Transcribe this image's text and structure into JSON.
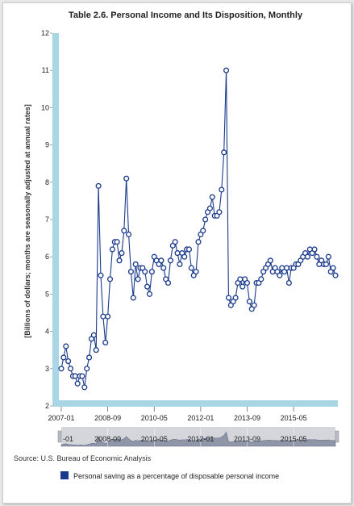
{
  "chart_data": {
    "type": "line",
    "title": "Table 2.6. Personal Income and Its Disposition, Monthly",
    "ylabel": "[Billions of dollars; months are seasonally adjusted at annual rates]",
    "xlabel": "",
    "ylim": [
      2,
      12
    ],
    "yticks": [
      2,
      3,
      4,
      5,
      6,
      7,
      8,
      9,
      10,
      11,
      12
    ],
    "xticks": [
      "2007-01",
      "2008-09",
      "2010-05",
      "2012-01",
      "2013-09",
      "2015-05"
    ],
    "navigator_ticks": [
      "2008-09",
      "2010-05",
      "2012-01",
      "2013-09",
      "2015-05"
    ],
    "navigator_partial_tick": "-01",
    "start": "2007-01",
    "series": [
      {
        "name": "Personal saving as a percentage of disposable personal income",
        "color": "#1a3a8c",
        "values": [
          3.0,
          3.3,
          3.6,
          3.2,
          3.0,
          2.8,
          2.8,
          2.6,
          2.8,
          2.8,
          2.5,
          3.0,
          3.3,
          3.8,
          3.9,
          3.5,
          7.9,
          5.5,
          4.4,
          3.7,
          4.4,
          5.4,
          6.2,
          6.4,
          6.4,
          5.9,
          6.1,
          6.7,
          8.1,
          6.6,
          5.6,
          4.9,
          5.8,
          5.4,
          5.7,
          5.7,
          5.6,
          5.2,
          5.0,
          5.6,
          6.0,
          5.9,
          5.8,
          5.9,
          5.7,
          5.4,
          5.3,
          5.9,
          6.3,
          6.4,
          6.1,
          5.8,
          6.1,
          6.0,
          6.2,
          6.2,
          5.7,
          5.5,
          5.6,
          6.4,
          6.6,
          6.7,
          7.0,
          7.2,
          7.3,
          7.6,
          7.1,
          7.1,
          7.2,
          7.8,
          8.8,
          11.0,
          4.9,
          4.7,
          4.8,
          4.9,
          5.3,
          5.4,
          5.2,
          5.4,
          5.3,
          4.8,
          4.6,
          4.7,
          5.3,
          5.3,
          5.4,
          5.6,
          5.7,
          5.8,
          5.9,
          5.6,
          5.7,
          5.6,
          5.5,
          5.7,
          5.6,
          5.7,
          5.3,
          5.7,
          5.7,
          5.8,
          5.8,
          5.9,
          6.0,
          6.1,
          6.0,
          6.2,
          6.1,
          6.2,
          6.0,
          5.8,
          5.9,
          5.8,
          5.8,
          6.0,
          5.6,
          5.7,
          5.5
        ]
      }
    ],
    "legend_position": "bottom-left",
    "grid": false
  },
  "source": "Source: U.S. Bureau of Economic Analysis",
  "colors": {
    "line": "#1a3a8c",
    "axis_band": "#a8d6e4",
    "navigator_fill": "#8f96a8",
    "navigator_bg": "#d4d6dc",
    "legend_swatch": "#1a3a8c"
  }
}
